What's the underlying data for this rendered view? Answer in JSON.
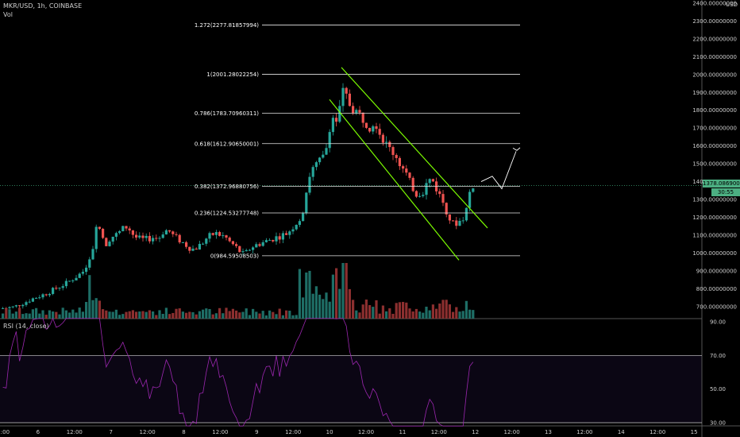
{
  "header": {
    "symbol_line": "MKR/USD, 1h, COINBASE",
    "vol_label": "Vol",
    "currency": "USD"
  },
  "price_tag": {
    "value": "1378.08690000",
    "countdown": "30:55"
  },
  "rsi_panel": {
    "label": "RSI (14, close)"
  },
  "colors": {
    "up": "#26a69a",
    "down": "#ef5350",
    "up_vol": "#1e6e66",
    "down_vol": "#8c2f2f",
    "channel": "#7cfc00",
    "fib": "#e6e6e6",
    "rsi": "#9c27b0",
    "price_tag": "#4caf82"
  },
  "chart_data": [
    {
      "type": "candlestick",
      "title": "MKR/USD, 1h, COINBASE",
      "ylim": [
        650,
        2400
      ],
      "y_ticks": [
        "2400.00000000",
        "2300.00000000",
        "2200.00000000",
        "2100.00000000",
        "2000.00000000",
        "1900.00000000",
        "1800.00000000",
        "1700.00000000",
        "1600.00000000",
        "1500.00000000",
        "1400.00000000",
        "1300.00000000",
        "1200.00000000",
        "1100.00000000",
        "1000.00000000",
        "900.00000000",
        "800.00000000",
        "700.00000000"
      ],
      "y_tick_values": [
        2400,
        2300,
        2200,
        2100,
        2000,
        1900,
        1800,
        1700,
        1600,
        1500,
        1400,
        1300,
        1200,
        1100,
        1000,
        900,
        800,
        700
      ],
      "x_ticks": [
        "12:00",
        "6",
        "12:00",
        "7",
        "12:00",
        "8",
        "12:00",
        "9",
        "12:00",
        "10",
        "12:00",
        "11",
        "12:00",
        "12",
        "12:00",
        "13",
        "12:00",
        "14",
        "12:00",
        "15"
      ],
      "close_path": [
        [
          0,
          690
        ],
        [
          8,
          692
        ],
        [
          16,
          698
        ],
        [
          24,
          712
        ],
        [
          32,
          728
        ],
        [
          40,
          745
        ],
        [
          48,
          758
        ],
        [
          56,
          772
        ],
        [
          64,
          790
        ],
        [
          72,
          808
        ],
        [
          80,
          826
        ],
        [
          88,
          848
        ],
        [
          96,
          872
        ],
        [
          104,
          900
        ],
        [
          110,
          960
        ],
        [
          116,
          1040
        ],
        [
          120,
          1180
        ],
        [
          126,
          1110
        ],
        [
          132,
          1050
        ],
        [
          138,
          1090
        ],
        [
          144,
          1100
        ],
        [
          150,
          1120
        ],
        [
          156,
          1150
        ],
        [
          162,
          1130
        ],
        [
          168,
          1090
        ],
        [
          174,
          1080
        ],
        [
          180,
          1075
        ],
        [
          186,
          1080
        ],
        [
          192,
          1090
        ],
        [
          198,
          1080
        ],
        [
          204,
          1120
        ],
        [
          210,
          1130
        ],
        [
          216,
          1100
        ],
        [
          222,
          1080
        ],
        [
          228,
          1060
        ],
        [
          234,
          1040
        ],
        [
          240,
          1020
        ],
        [
          246,
          1030
        ],
        [
          252,
          1050
        ],
        [
          258,
          1080
        ],
        [
          264,
          1100
        ],
        [
          270,
          1110
        ],
        [
          276,
          1100
        ],
        [
          282,
          1090
        ],
        [
          288,
          1060
        ],
        [
          294,
          1040
        ],
        [
          300,
          1010
        ],
        [
          306,
          990
        ],
        [
          312,
          1020
        ],
        [
          318,
          1040
        ],
        [
          324,
          1050
        ],
        [
          330,
          1060
        ],
        [
          336,
          1070
        ],
        [
          342,
          1080
        ],
        [
          348,
          1090
        ],
        [
          354,
          1100
        ],
        [
          360,
          1110
        ],
        [
          366,
          1140
        ],
        [
          372,
          1170
        ],
        [
          378,
          1200
        ],
        [
          382,
          1280
        ],
        [
          386,
          1400
        ],
        [
          390,
          1460
        ],
        [
          394,
          1480
        ],
        [
          398,
          1500
        ],
        [
          402,
          1520
        ],
        [
          406,
          1540
        ],
        [
          410,
          1600
        ],
        [
          414,
          1720
        ],
        [
          418,
          1760
        ],
        [
          422,
          1740
        ],
        [
          426,
          1800
        ],
        [
          430,
          1900
        ],
        [
          434,
          1880
        ],
        [
          438,
          1840
        ],
        [
          442,
          1810
        ],
        [
          446,
          1800
        ],
        [
          450,
          1780
        ],
        [
          454,
          1760
        ],
        [
          458,
          1740
        ],
        [
          462,
          1720
        ],
        [
          466,
          1700
        ],
        [
          470,
          1760
        ],
        [
          474,
          1700
        ],
        [
          478,
          1660
        ],
        [
          482,
          1630
        ],
        [
          486,
          1600
        ],
        [
          490,
          1580
        ],
        [
          494,
          1560
        ],
        [
          498,
          1540
        ],
        [
          502,
          1500
        ],
        [
          506,
          1470
        ],
        [
          510,
          1440
        ],
        [
          514,
          1400
        ],
        [
          518,
          1370
        ],
        [
          522,
          1330
        ],
        [
          526,
          1340
        ],
        [
          530,
          1330
        ],
        [
          534,
          1380
        ],
        [
          538,
          1400
        ],
        [
          542,
          1420
        ],
        [
          546,
          1380
        ],
        [
          550,
          1340
        ],
        [
          554,
          1310
        ],
        [
          558,
          1270
        ],
        [
          562,
          1220
        ],
        [
          566,
          1180
        ],
        [
          570,
          1160
        ],
        [
          574,
          1170
        ],
        [
          578,
          1180
        ],
        [
          582,
          1200
        ],
        [
          586,
          1250
        ],
        [
          590,
          1340
        ],
        [
          594,
          1380
        ],
        [
          598,
          1378
        ]
      ],
      "fibonacci": [
        {
          "level": "1.272",
          "price": "2277.81857994",
          "value": 2277.82
        },
        {
          "level": "1",
          "price": "2001.28022254",
          "value": 2001.28
        },
        {
          "level": "0.786",
          "price": "1783.70960311",
          "value": 1783.71
        },
        {
          "level": "0.618",
          "price": "1612.90650001",
          "value": 1612.91
        },
        {
          "level": "0.382",
          "price": "1372.96880756",
          "value": 1372.97
        },
        {
          "level": "0.236",
          "price": "1224.53277748",
          "value": 1224.53
        },
        {
          "level": "0",
          "price": "984.59508503",
          "value": 984.6
        }
      ],
      "channel": [
        {
          "x1": 430,
          "y1": 2040,
          "x2": 614,
          "y2": 1140
        },
        {
          "x1": 415,
          "y1": 1860,
          "x2": 578,
          "y2": 960
        }
      ]
    },
    {
      "type": "line",
      "series": [
        {
          "name": "RSI (14, close)"
        }
      ],
      "ylim": [
        30,
        90
      ],
      "y_ticks": [
        "90.00",
        "70.00",
        "50.00",
        "30.00"
      ],
      "y_tick_values": [
        90,
        70,
        50,
        30
      ]
    }
  ]
}
